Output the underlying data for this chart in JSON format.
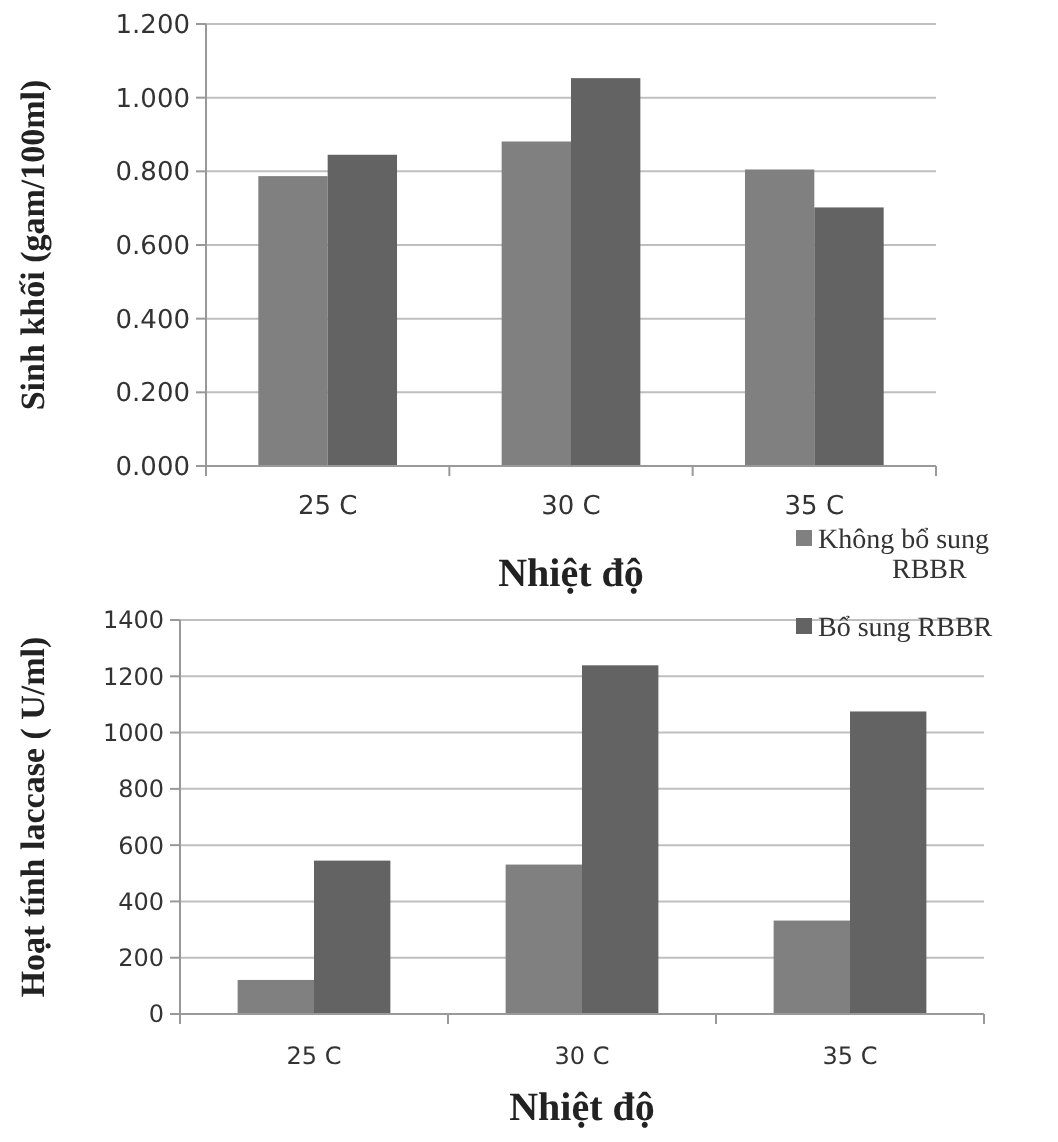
{
  "chart_data": [
    {
      "type": "bar",
      "xlabel": "Nhiệt độ",
      "ylabel": "Sinh khối (gam/100ml)",
      "categories": [
        "25 C",
        "30 C",
        "35 C"
      ],
      "series": [
        {
          "color": "#808080",
          "values": [
            0.787,
            0.881,
            0.805
          ]
        },
        {
          "color": "#636363",
          "values": [
            0.845,
            1.053,
            0.702
          ]
        }
      ],
      "ylim": [
        0,
        1.2
      ],
      "yticks": [
        {
          "value": 0,
          "label": "0.000"
        },
        {
          "value": 0.2,
          "label": "0.200"
        },
        {
          "value": 0.4,
          "label": "0.400"
        },
        {
          "value": 0.6,
          "label": "0.600"
        },
        {
          "value": 0.8,
          "label": "0.800"
        },
        {
          "value": 1,
          "label": "1.000"
        },
        {
          "value": 1.2,
          "label": "1.200"
        }
      ],
      "grid": "y"
    },
    {
      "type": "bar",
      "xlabel": "Nhiệt độ",
      "ylabel": "Hoạt tính laccase ( U/ml)",
      "categories": [
        "25 C",
        "30 C",
        "35 C"
      ],
      "series": [
        {
          "name": "Không bổ sung RBBR",
          "color": "#808080",
          "values": [
            121,
            531,
            332
          ]
        },
        {
          "name": "Bổ sung RBBR",
          "color": "#636363",
          "values": [
            545,
            1239,
            1075
          ]
        }
      ],
      "ylim": [
        0,
        1400
      ],
      "yticks": [
        0,
        200,
        400,
        600,
        800,
        1000,
        1200,
        1400
      ],
      "grid": "y",
      "legend": "top right"
    }
  ]
}
